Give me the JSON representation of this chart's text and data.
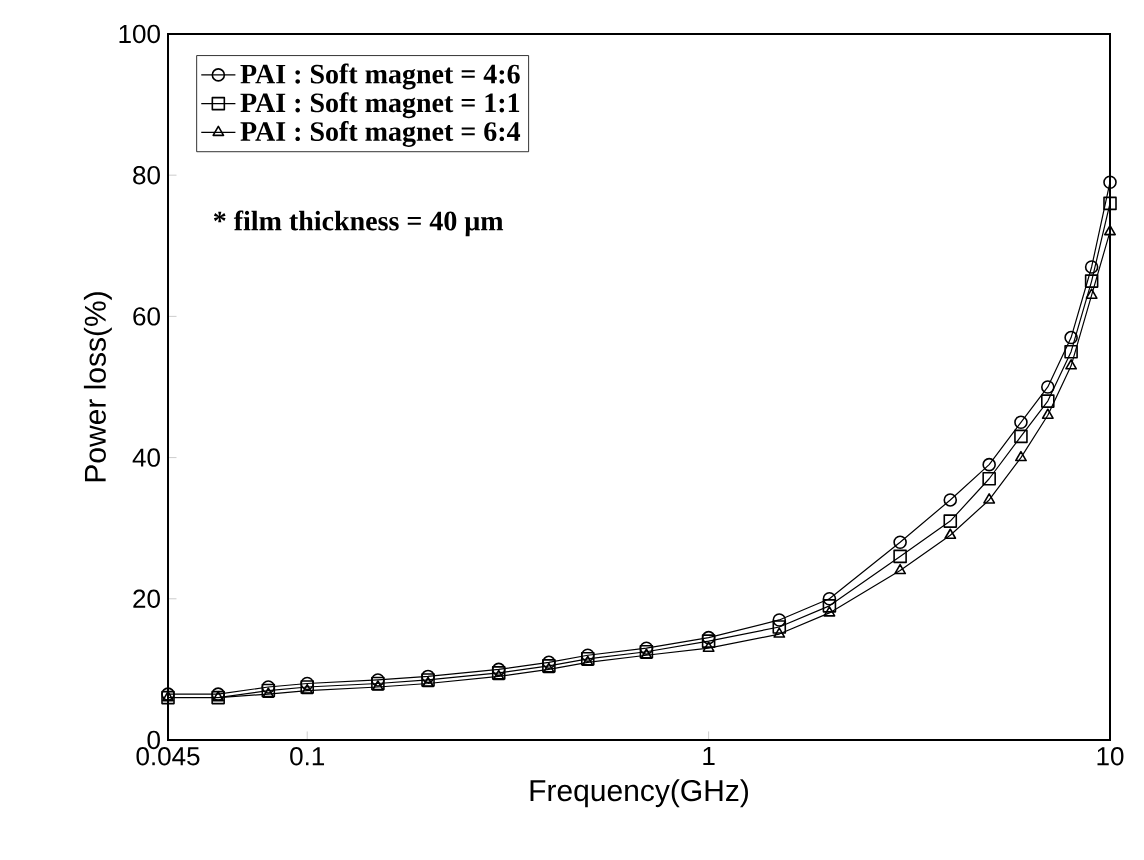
{
  "chart_data": {
    "type": "line",
    "xlabel": "Frequency(GHz)",
    "ylabel": "Power loss(%)",
    "log": "x",
    "xlim": [
      0.045,
      10
    ],
    "xticks": [
      0.045,
      0.1,
      1,
      10
    ],
    "ylim": [
      0,
      100
    ],
    "yticks": [
      0,
      20,
      40,
      60,
      80,
      100
    ],
    "legend": "top left",
    "line_style": "solid",
    "grid": false,
    "annotations": [
      "* film thickness = 40 μm"
    ],
    "x": [
      0.045,
      0.06,
      0.08,
      0.1,
      0.15,
      0.2,
      0.3,
      0.4,
      0.5,
      0.7,
      1,
      1.5,
      2,
      3,
      4,
      5,
      6,
      7,
      8,
      9,
      10
    ],
    "series": [
      {
        "name": "PAI : Soft magnet = 4:6",
        "color": "#000000",
        "marker": "circle",
        "values": [
          6.5,
          6.5,
          7.5,
          8,
          8.5,
          9,
          10,
          11,
          12,
          13,
          14.5,
          17,
          20,
          28,
          34,
          39,
          45,
          50,
          57,
          67,
          79
        ]
      },
      {
        "name": "PAI : Soft magnet = 1:1",
        "color": "#000000",
        "marker": "square",
        "values": [
          6,
          6,
          7,
          7.5,
          8,
          8.5,
          9.5,
          10.5,
          11.5,
          12.5,
          14,
          16,
          19,
          26,
          31,
          37,
          43,
          48,
          55,
          65,
          76
        ]
      },
      {
        "name": "PAI : Soft magnet = 6:4",
        "color": "#000000",
        "marker": "triangle",
        "values": [
          6,
          6,
          6.5,
          7,
          7.5,
          8,
          9,
          10,
          11,
          12,
          13,
          15,
          18,
          24,
          29,
          34,
          40,
          46,
          53,
          63,
          72
        ]
      }
    ]
  }
}
